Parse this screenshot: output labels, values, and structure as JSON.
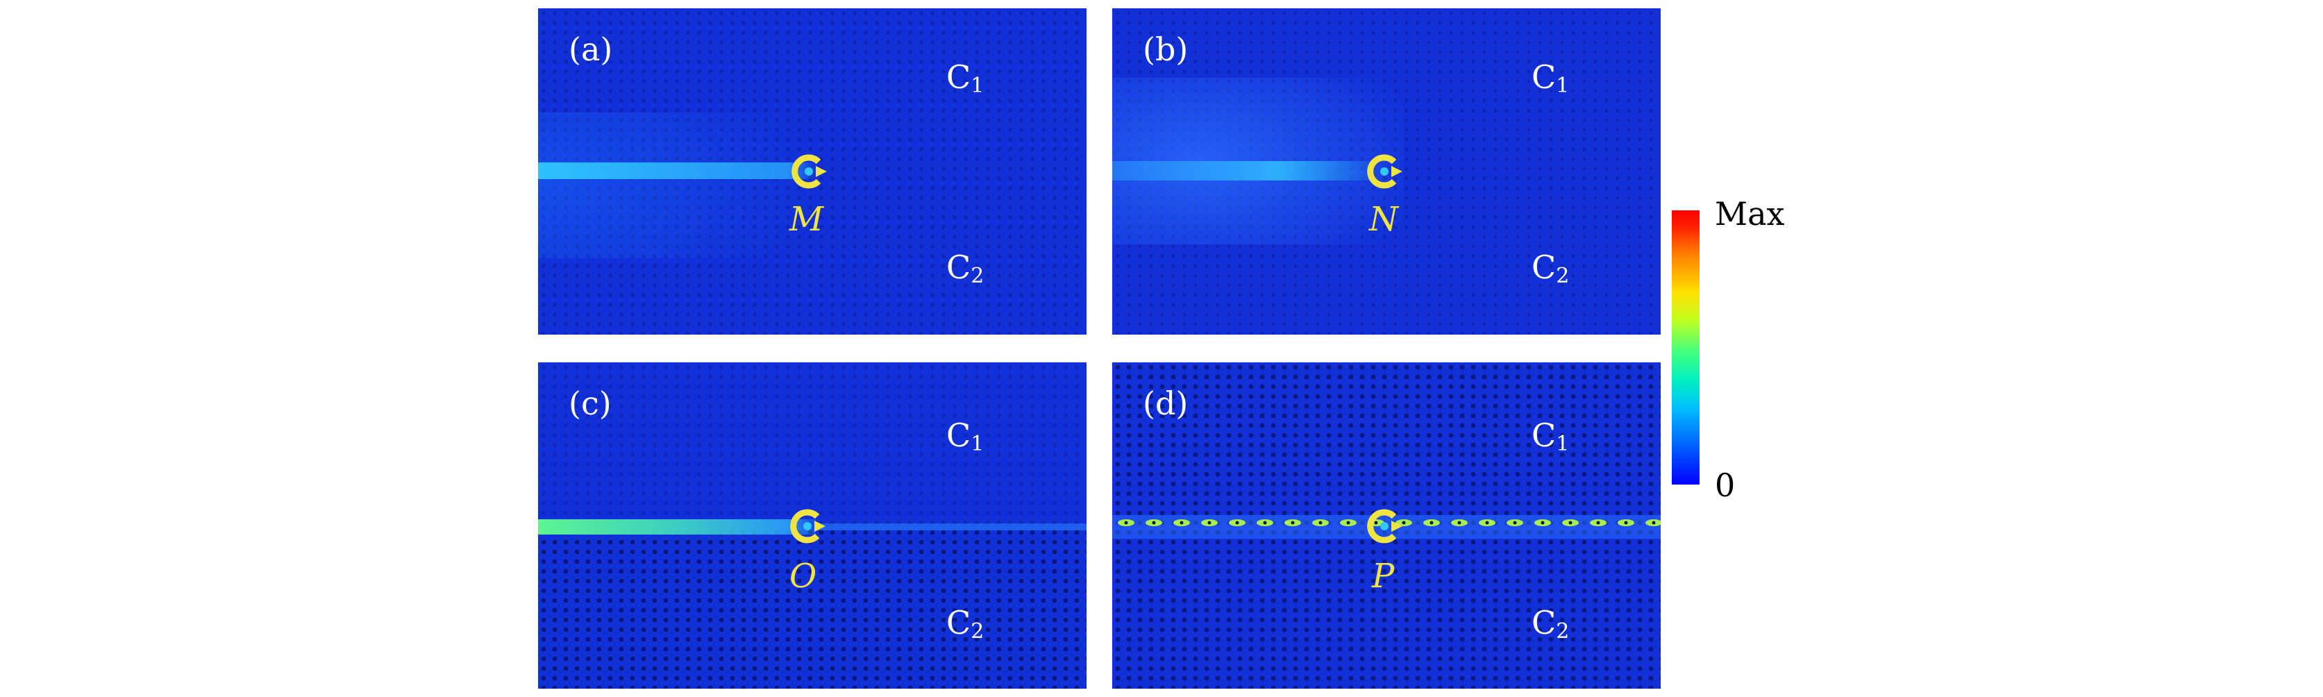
{
  "panels": [
    {
      "label": "(a)",
      "source": "M",
      "c1": "C",
      "c1_sub": "1",
      "c2": "C",
      "c2_sub": "2"
    },
    {
      "label": "(b)",
      "source": "N",
      "c1": "C",
      "c1_sub": "1",
      "c2": "C",
      "c2_sub": "2"
    },
    {
      "label": "(c)",
      "source": "O",
      "c1": "C",
      "c1_sub": "1",
      "c2": "C",
      "c2_sub": "2"
    },
    {
      "label": "(d)",
      "source": "P",
      "c1": "C",
      "c1_sub": "1",
      "c2": "C",
      "c2_sub": "2"
    }
  ],
  "colorbar": {
    "max_label": "Max",
    "min_label": "0"
  },
  "colors": {
    "background_field": "#1230d8",
    "source_marker": "#f0e442",
    "label_text": "#ffffff"
  }
}
